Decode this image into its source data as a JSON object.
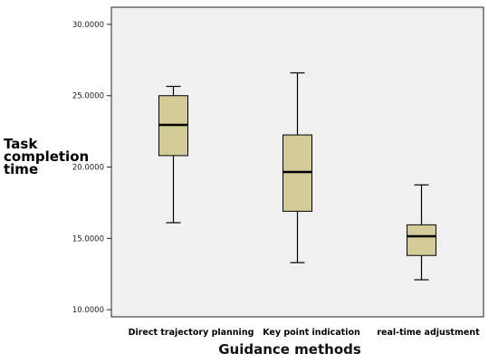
{
  "chart_data": {
    "type": "boxplot",
    "xlabel": "Guidance methods",
    "ylabel": [
      "Task",
      "completion",
      "time"
    ],
    "ylim": [
      9.5,
      31.2
    ],
    "yticks": [
      "10.0000",
      "15.0000",
      "20.0000",
      "25.0000",
      "30.0000"
    ],
    "ytick_values": [
      10,
      15,
      20,
      25,
      30
    ],
    "grid": false,
    "colors": {
      "box_fill": "#d4cc98",
      "plot_bg": "#f0f0f0",
      "median": "#000000"
    },
    "categories": [
      "Direct trajectory planning",
      "Key point indication",
      "real-time adjustment"
    ],
    "boxes": [
      {
        "name": "Direct trajectory planning",
        "min": 16.1,
        "q1": 20.8,
        "median": 22.95,
        "q3": 25.0,
        "max": 25.65
      },
      {
        "name": "Key point indication",
        "min": 13.3,
        "q1": 16.9,
        "median": 19.65,
        "q3": 22.25,
        "max": 26.6
      },
      {
        "name": "real-time adjustment",
        "min": 12.1,
        "q1": 13.8,
        "median": 15.15,
        "q3": 15.95,
        "max": 18.75
      }
    ]
  }
}
